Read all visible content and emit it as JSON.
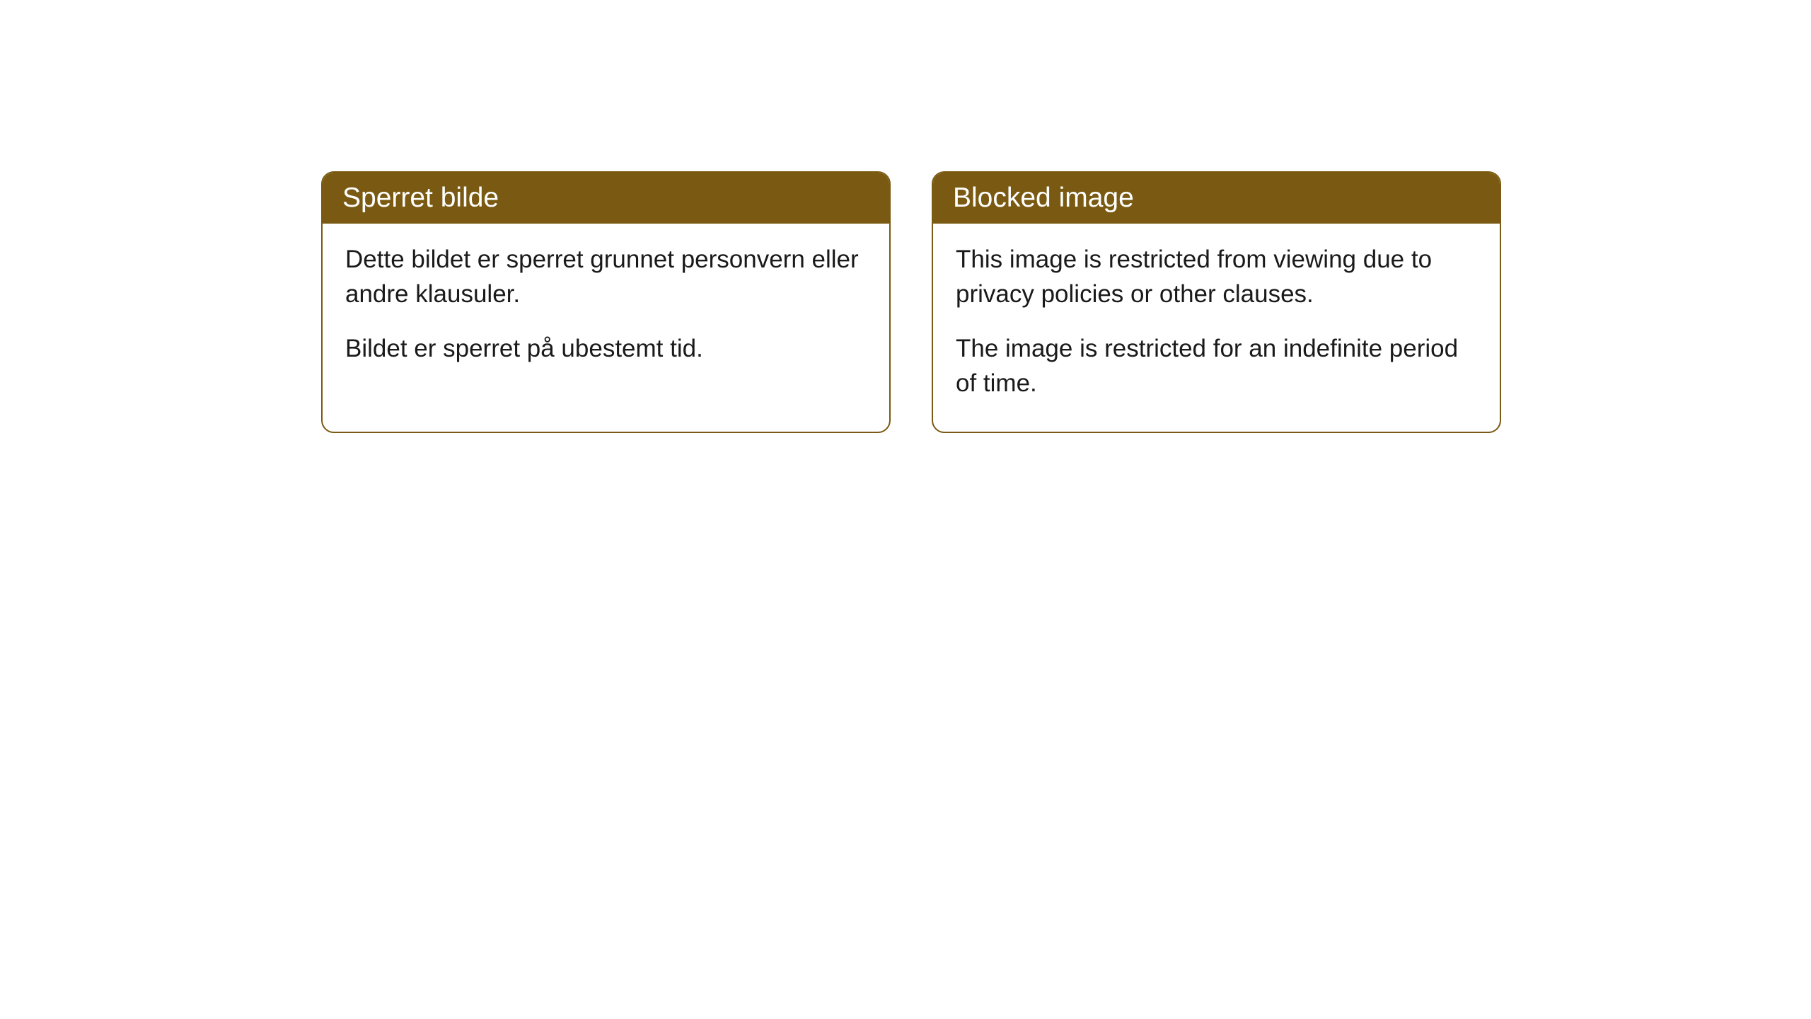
{
  "cards": {
    "norwegian": {
      "title": "Sperret bilde",
      "paragraph1": "Dette bildet er sperret grunnet personvern eller andre klausuler.",
      "paragraph2": "Bildet er sperret på ubestemt tid."
    },
    "english": {
      "title": "Blocked image",
      "paragraph1": "This image is restricted from viewing due to privacy policies or other clauses.",
      "paragraph2": "The image is restricted for an indefinite period of time."
    }
  },
  "styling": {
    "header_background": "#7a5a12",
    "header_text_color": "#ffffff",
    "border_color": "#7a5a12",
    "body_text_color": "#1a1a1a",
    "card_background": "#ffffff",
    "page_background": "#ffffff",
    "border_radius": 18,
    "header_fontsize": 39,
    "body_fontsize": 35
  }
}
